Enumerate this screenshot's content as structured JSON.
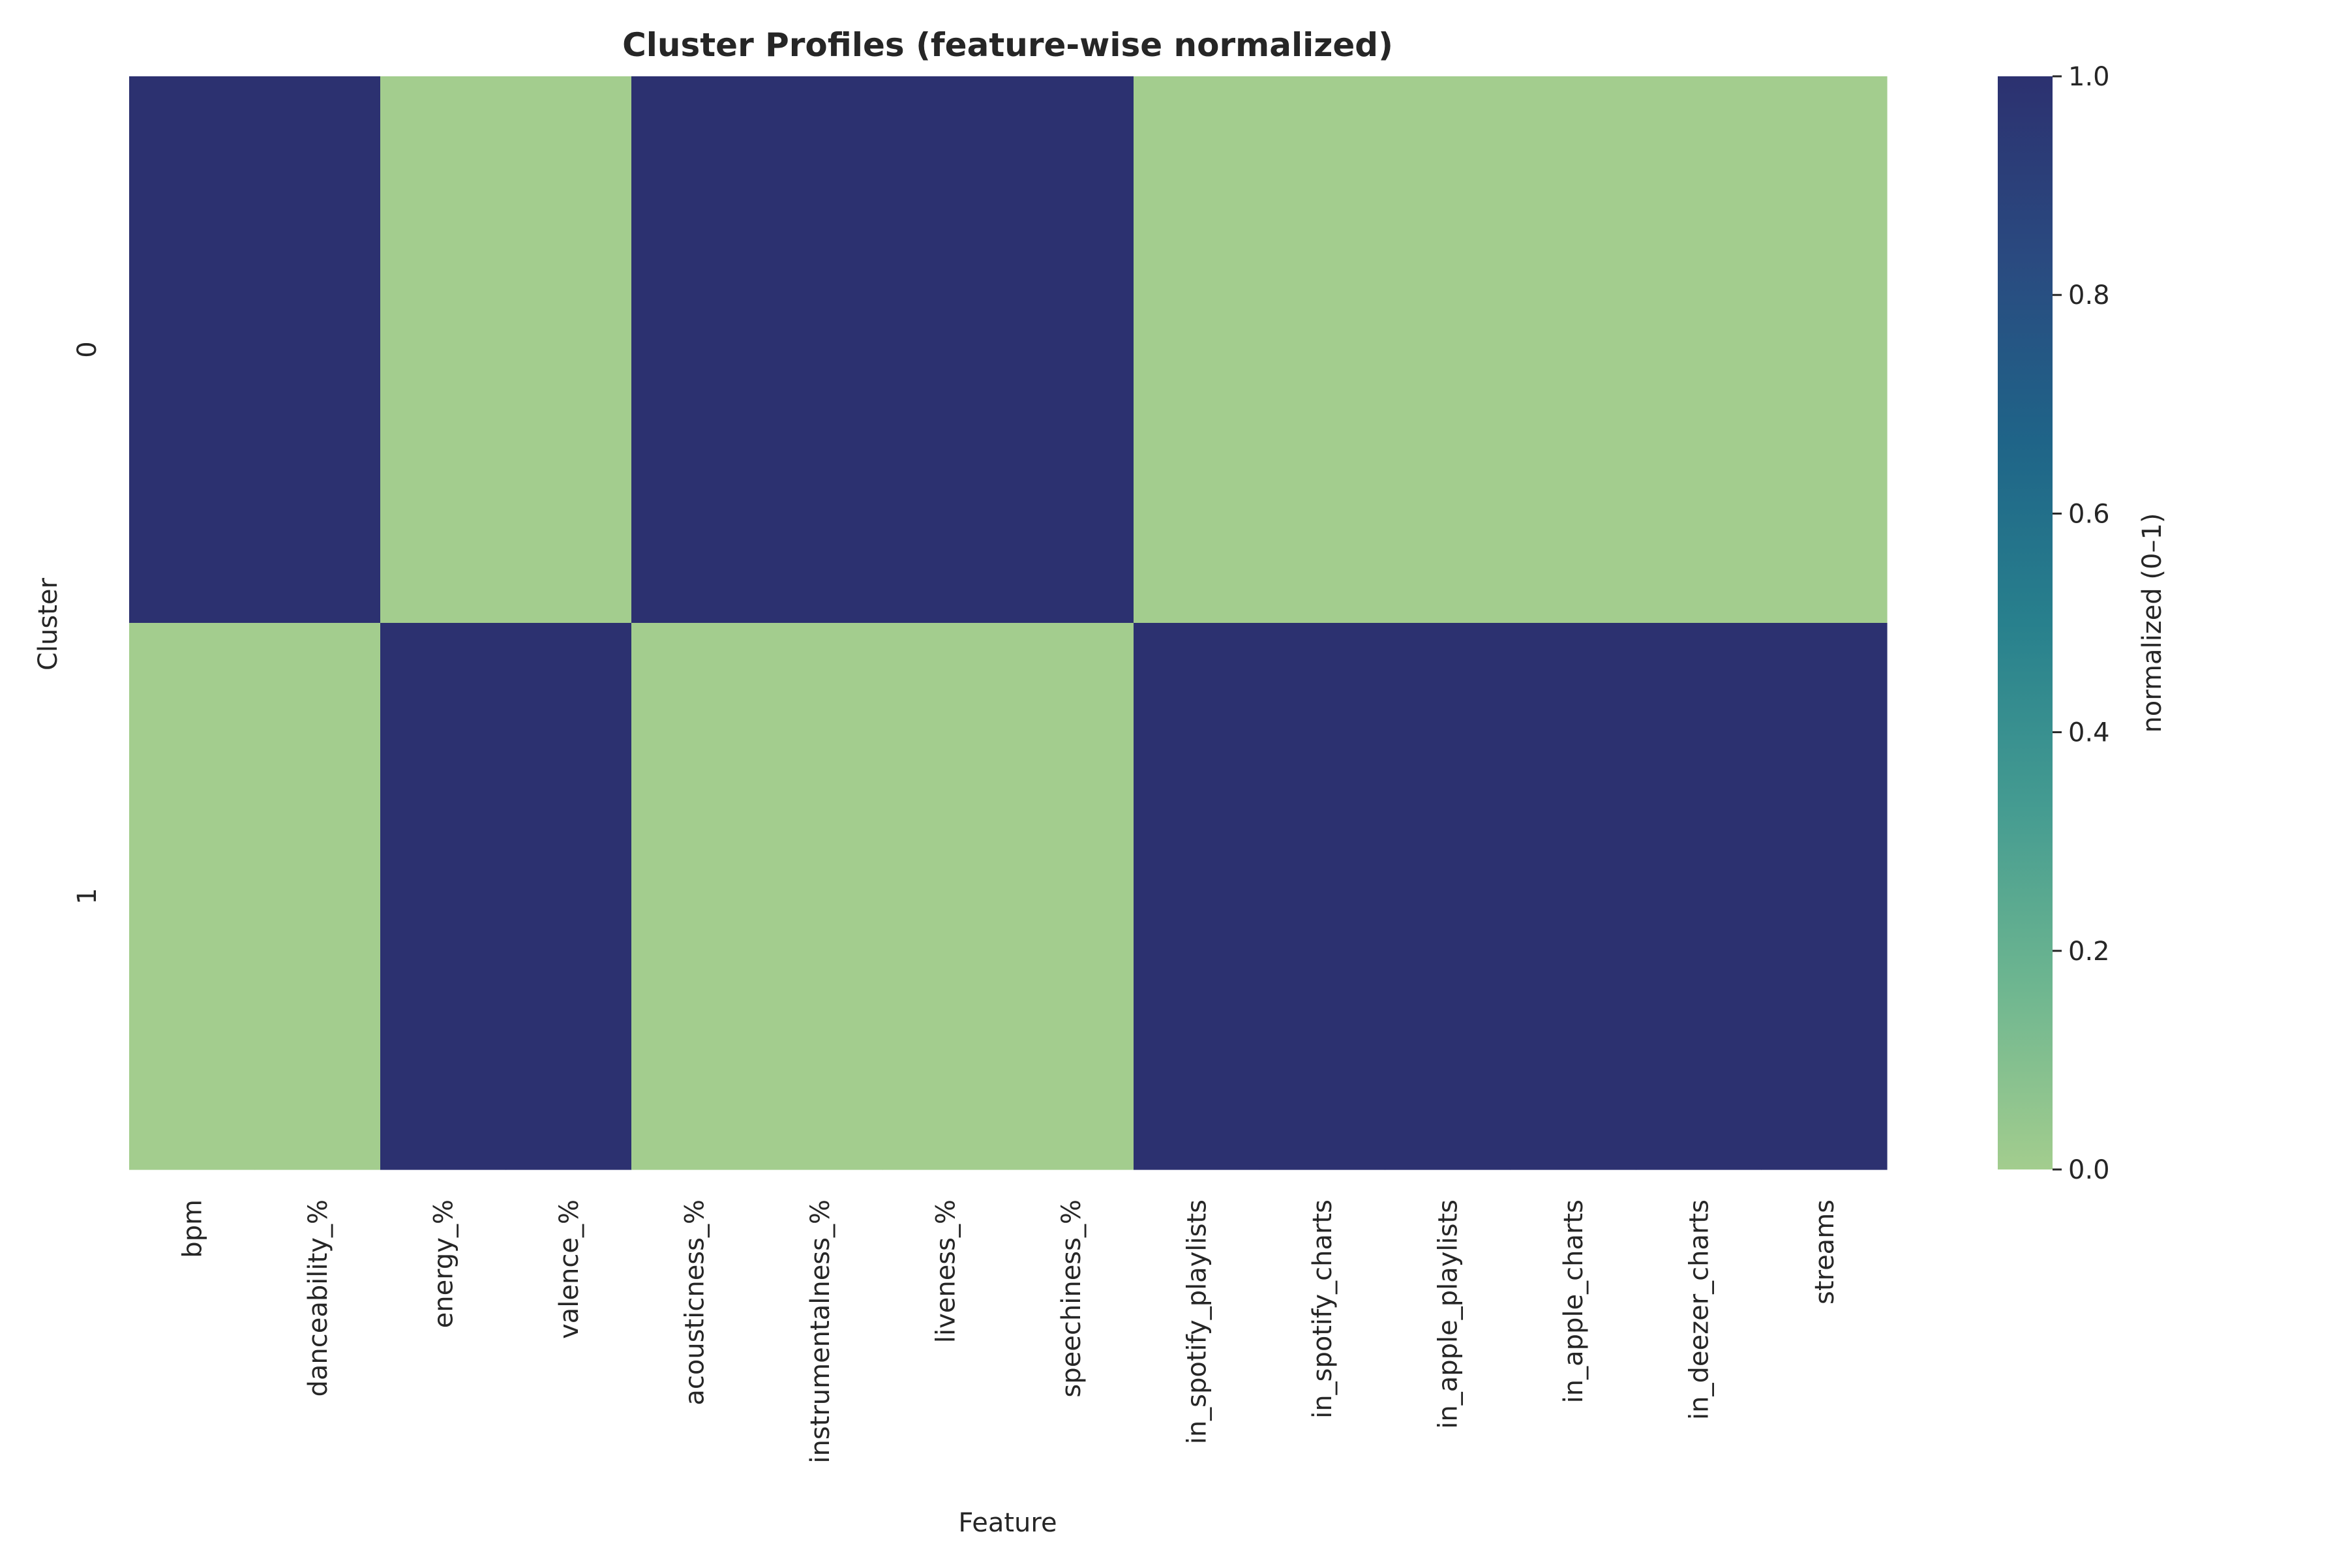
{
  "chart_data": {
    "type": "heatmap",
    "title": "Cluster Profiles (feature-wise normalized)",
    "xlabel": "Feature",
    "ylabel": "Cluster",
    "x_categories": [
      "bpm",
      "danceability_%",
      "energy_%",
      "valence_%",
      "acousticness_%",
      "instrumentalness_%",
      "liveness_%",
      "speechiness_%",
      "in_spotify_playlists",
      "in_spotify_charts",
      "in_apple_playlists",
      "in_apple_charts",
      "in_deezer_charts",
      "streams"
    ],
    "y_categories": [
      "0",
      "1"
    ],
    "values": [
      [
        1,
        1,
        0,
        0,
        1,
        1,
        1,
        1,
        0,
        0,
        0,
        0,
        0,
        0
      ],
      [
        0,
        0,
        1,
        1,
        0,
        0,
        0,
        0,
        1,
        1,
        1,
        1,
        1,
        1
      ]
    ],
    "colorbar": {
      "label": "normalized (0–1)",
      "range": [
        0,
        1
      ],
      "ticks": [
        "0.0",
        "0.2",
        "0.4",
        "0.6",
        "0.8",
        "1.0"
      ]
    },
    "colormap": [
      "#a3cd8e",
      "#6eb690",
      "#449b91",
      "#28808d",
      "#1f6488",
      "#2a4a80",
      "#2c3170"
    ],
    "grid": false,
    "legend": "colorbar-right"
  }
}
